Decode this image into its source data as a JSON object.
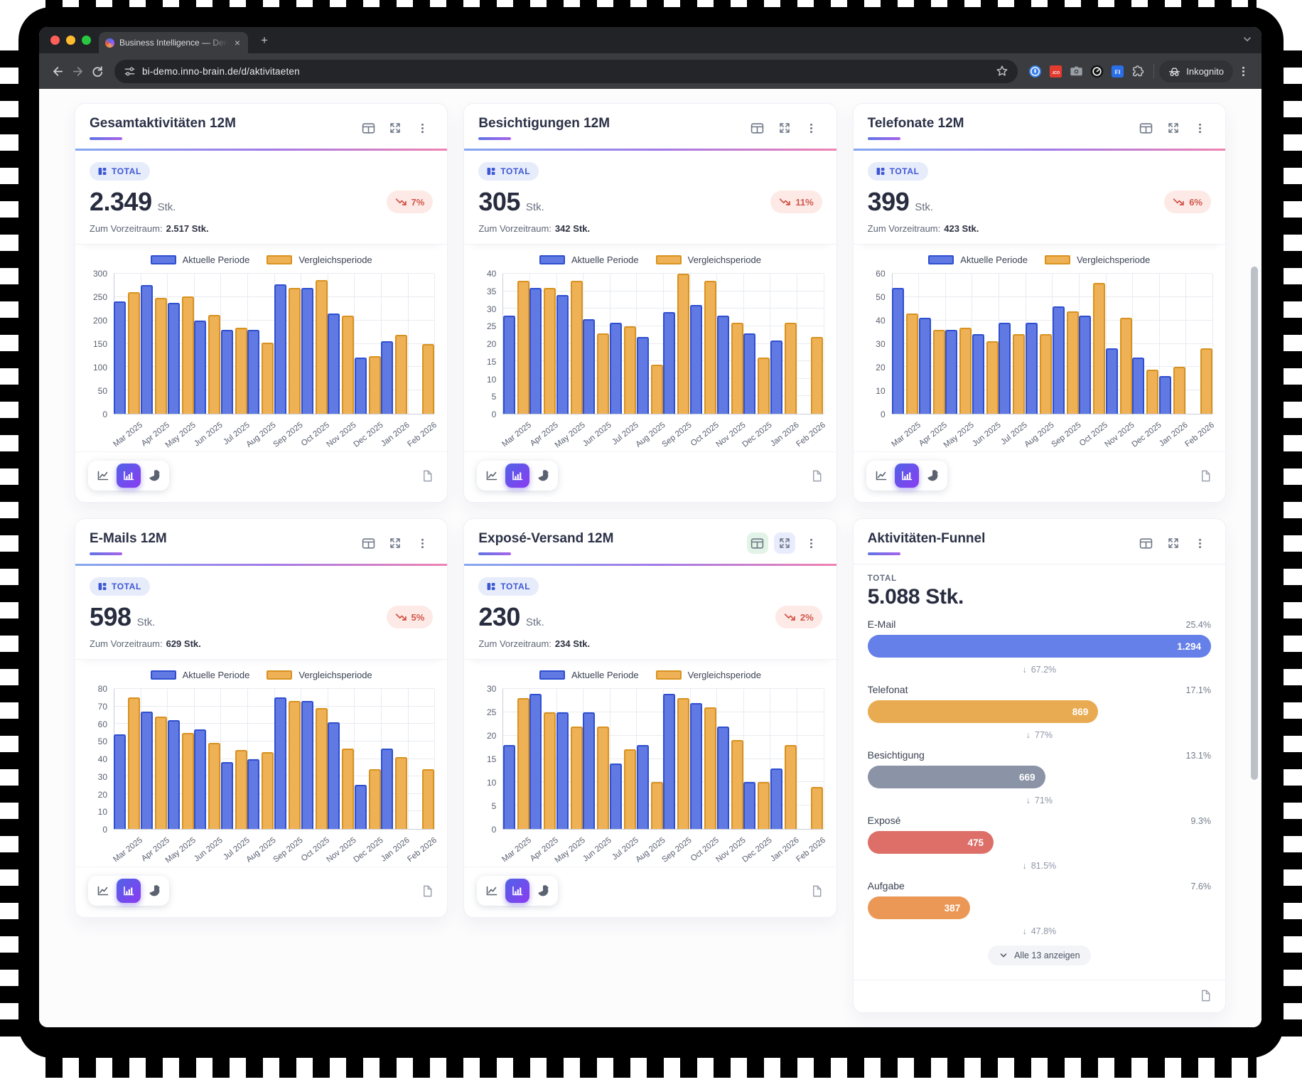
{
  "browser": {
    "tab_title": "Business Intelligence — Demo",
    "url": "bi-demo.inno-brain.de/d/aktivitaeten",
    "incognito_label": "Inkognito"
  },
  "labels": {
    "total_badge": "TOTAL",
    "unit": "Stk.",
    "previous_prefix": "Zum Vorzeitraum:",
    "legend": [
      "Aktuelle Periode",
      "Vergleichsperiode"
    ],
    "drop_arrow": "↓"
  },
  "months": [
    "Mar 2025",
    "Apr 2025",
    "May 2025",
    "Jun 2025",
    "Jul 2025",
    "Aug 2025",
    "Sep 2025",
    "Oct 2025",
    "Nov 2025",
    "Dec 2025",
    "Jan 2026",
    "Feb 2026"
  ],
  "palette": {
    "current_fill": "#6079e3",
    "current_border": "#2e4fd0",
    "compare_fill": "#eeb156",
    "compare_border": "#d8921f",
    "negative_text": "#d2574a",
    "negative_bg": "#fdeae7",
    "accent_gradient": [
      "#5f74e4",
      "#a763ea"
    ],
    "header_gradient": [
      "#86a8f0",
      "#a27ae8",
      "#ef82b2"
    ]
  },
  "cards": [
    {
      "type": "chart",
      "title": "Gesamtaktivitäten 12M",
      "total": "2.349",
      "change": "7%",
      "previous": "2.517 Stk.",
      "chart_data": {
        "type": "bar",
        "ylim": [
          0,
          300
        ],
        "y_ticks": [
          0,
          50,
          100,
          150,
          200,
          250,
          300
        ],
        "categories": [
          "Mar 2025",
          "Apr 2025",
          "May 2025",
          "Jun 2025",
          "Jul 2025",
          "Aug 2025",
          "Sep 2025",
          "Oct 2025",
          "Nov 2025",
          "Dec 2025",
          "Jan 2026",
          "Feb 2026"
        ],
        "series": [
          {
            "name": "Aktuelle Periode",
            "values": [
              240,
              275,
              238,
              200,
              180,
              179,
              277,
              270,
              214,
              120,
              156,
              null
            ]
          },
          {
            "name": "Vergleichsperiode",
            "values": [
              260,
              249,
              252,
              212,
              184,
              152,
              269,
              287,
              210,
              124,
              169,
              149
            ]
          }
        ]
      }
    },
    {
      "type": "chart",
      "title": "Besichtigungen 12M",
      "total": "305",
      "change": "11%",
      "previous": "342 Stk.",
      "chart_data": {
        "type": "bar",
        "ylim": [
          0,
          40
        ],
        "y_ticks": [
          0,
          5,
          10,
          15,
          20,
          25,
          30,
          35,
          40
        ],
        "categories": [
          "Mar 2025",
          "Apr 2025",
          "May 2025",
          "Jun 2025",
          "Jul 2025",
          "Aug 2025",
          "Sep 2025",
          "Oct 2025",
          "Nov 2025",
          "Dec 2025",
          "Jan 2026",
          "Feb 2026"
        ],
        "series": [
          {
            "name": "Aktuelle Periode",
            "values": [
              28,
              36,
              34,
              27,
              26,
              22,
              29,
              31,
              28,
              23,
              21,
              null
            ]
          },
          {
            "name": "Vergleichsperiode",
            "values": [
              38,
              36,
              38,
              23,
              25,
              14,
              40,
              38,
              26,
              16,
              26,
              22
            ]
          }
        ]
      }
    },
    {
      "type": "chart",
      "title": "Telefonate 12M",
      "total": "399",
      "change": "6%",
      "previous": "423 Stk.",
      "chart_data": {
        "type": "bar",
        "ylim": [
          0,
          60
        ],
        "y_ticks": [
          0,
          10,
          20,
          30,
          40,
          50,
          60
        ],
        "categories": [
          "Mar 2025",
          "Apr 2025",
          "May 2025",
          "Jun 2025",
          "Jul 2025",
          "Aug 2025",
          "Sep 2025",
          "Oct 2025",
          "Nov 2025",
          "Dec 2025",
          "Jan 2026",
          "Feb 2026"
        ],
        "series": [
          {
            "name": "Aktuelle Periode",
            "values": [
              54,
              41,
              36,
              34,
              39,
              39,
              46,
              42,
              28,
              24,
              16,
              null
            ]
          },
          {
            "name": "Vergleichsperiode",
            "values": [
              43,
              36,
              37,
              31,
              34,
              34,
              44,
              56,
              41,
              19,
              20,
              28
            ]
          }
        ]
      }
    },
    {
      "type": "chart",
      "title": "E-Mails 12M",
      "total": "598",
      "change": "5%",
      "previous": "629 Stk.",
      "chart_data": {
        "type": "bar",
        "ylim": [
          0,
          80
        ],
        "y_ticks": [
          0,
          10,
          20,
          30,
          40,
          50,
          60,
          70,
          80
        ],
        "categories": [
          "Mar 2025",
          "Apr 2025",
          "May 2025",
          "Jun 2025",
          "Jul 2025",
          "Aug 2025",
          "Sep 2025",
          "Oct 2025",
          "Nov 2025",
          "Dec 2025",
          "Jan 2026",
          "Feb 2026"
        ],
        "series": [
          {
            "name": "Aktuelle Periode",
            "values": [
              54,
              67,
              62,
              57,
              38,
              40,
              75,
              73,
              61,
              25,
              46,
              null
            ]
          },
          {
            "name": "Vergleichsperiode",
            "values": [
              75,
              64,
              55,
              49,
              45,
              44,
              73,
              69,
              46,
              34,
              41,
              34
            ]
          }
        ]
      }
    },
    {
      "type": "chart",
      "title": "Exposé-Versand 12M",
      "total": "230",
      "change": "2%",
      "previous": "234 Stk.",
      "header_highlight": {
        "table": "#e2f3e7",
        "expand": "#e8ecfc"
      },
      "chart_data": {
        "type": "bar",
        "ylim": [
          0,
          30
        ],
        "y_ticks": [
          0,
          5,
          10,
          15,
          20,
          25,
          30
        ],
        "categories": [
          "Mar 2025",
          "Apr 2025",
          "May 2025",
          "Jun 2025",
          "Jul 2025",
          "Aug 2025",
          "Sep 2025",
          "Oct 2025",
          "Nov 2025",
          "Dec 2025",
          "Jan 2026",
          "Feb 2026"
        ],
        "series": [
          {
            "name": "Aktuelle Periode",
            "values": [
              18,
              29,
              25,
              25,
              14,
              18,
              29,
              27,
              22,
              10,
              13,
              null
            ]
          },
          {
            "name": "Vergleichsperiode",
            "values": [
              28,
              25,
              22,
              22,
              17,
              10,
              28,
              26,
              19,
              10,
              18,
              9
            ]
          }
        ]
      }
    },
    {
      "type": "funnel",
      "title": "Aktivitäten-Funnel",
      "total_label": "TOTAL",
      "total": "5.088 Stk.",
      "stages": [
        {
          "label": "E-Mail",
          "value": "1.294",
          "num": 1294,
          "pct": "25.4%",
          "color": "#6580e8"
        },
        {
          "label": "Telefonat",
          "value": "869",
          "num": 869,
          "pct": "17.1%",
          "color": "#e9ab52"
        },
        {
          "label": "Besichtigung",
          "value": "669",
          "num": 669,
          "pct": "13.1%",
          "color": "#8b93a7"
        },
        {
          "label": "Exposé",
          "value": "475",
          "num": 475,
          "pct": "9.3%",
          "color": "#dd6f68"
        },
        {
          "label": "Aufgabe",
          "value": "387",
          "num": 387,
          "pct": "7.6%",
          "color": "#eb9857"
        }
      ],
      "drops": [
        "67.2%",
        "77%",
        "71%",
        "81.5%",
        "47.8%"
      ],
      "show_all_label": "Alle 13 anzeigen"
    }
  ]
}
